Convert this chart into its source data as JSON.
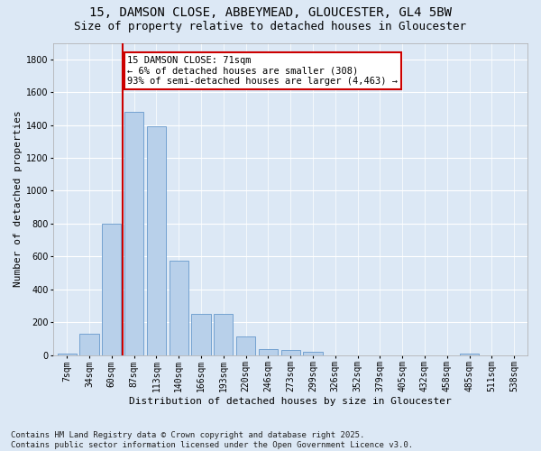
{
  "title": "15, DAMSON CLOSE, ABBEYMEAD, GLOUCESTER, GL4 5BW",
  "subtitle": "Size of property relative to detached houses in Gloucester",
  "xlabel": "Distribution of detached houses by size in Gloucester",
  "ylabel": "Number of detached properties",
  "bar_color": "#b8d0ea",
  "bar_edge_color": "#6699cc",
  "bins": [
    "7sqm",
    "34sqm",
    "60sqm",
    "87sqm",
    "113sqm",
    "140sqm",
    "166sqm",
    "193sqm",
    "220sqm",
    "246sqm",
    "273sqm",
    "299sqm",
    "326sqm",
    "352sqm",
    "379sqm",
    "405sqm",
    "432sqm",
    "458sqm",
    "485sqm",
    "511sqm",
    "538sqm"
  ],
  "values": [
    10,
    130,
    800,
    1480,
    1390,
    575,
    250,
    250,
    115,
    35,
    30,
    20,
    0,
    0,
    0,
    0,
    0,
    0,
    10,
    0,
    0
  ],
  "ylim": [
    0,
    1900
  ],
  "yticks": [
    0,
    200,
    400,
    600,
    800,
    1000,
    1200,
    1400,
    1600,
    1800
  ],
  "vline_x": 2.5,
  "vline_color": "#cc0000",
  "annotation_text": "15 DAMSON CLOSE: 71sqm\n← 6% of detached houses are smaller (308)\n93% of semi-detached houses are larger (4,463) →",
  "annotation_box_color": "#ffffff",
  "annotation_box_edgecolor": "#cc0000",
  "footer_line1": "Contains HM Land Registry data © Crown copyright and database right 2025.",
  "footer_line2": "Contains public sector information licensed under the Open Government Licence v3.0.",
  "background_color": "#dce8f5",
  "plot_bg_color": "#dce8f5",
  "grid_color": "#ffffff",
  "title_fontsize": 10,
  "subtitle_fontsize": 9,
  "axis_label_fontsize": 8,
  "tick_fontsize": 7,
  "footer_fontsize": 6.5,
  "annotation_fontsize": 7.5
}
